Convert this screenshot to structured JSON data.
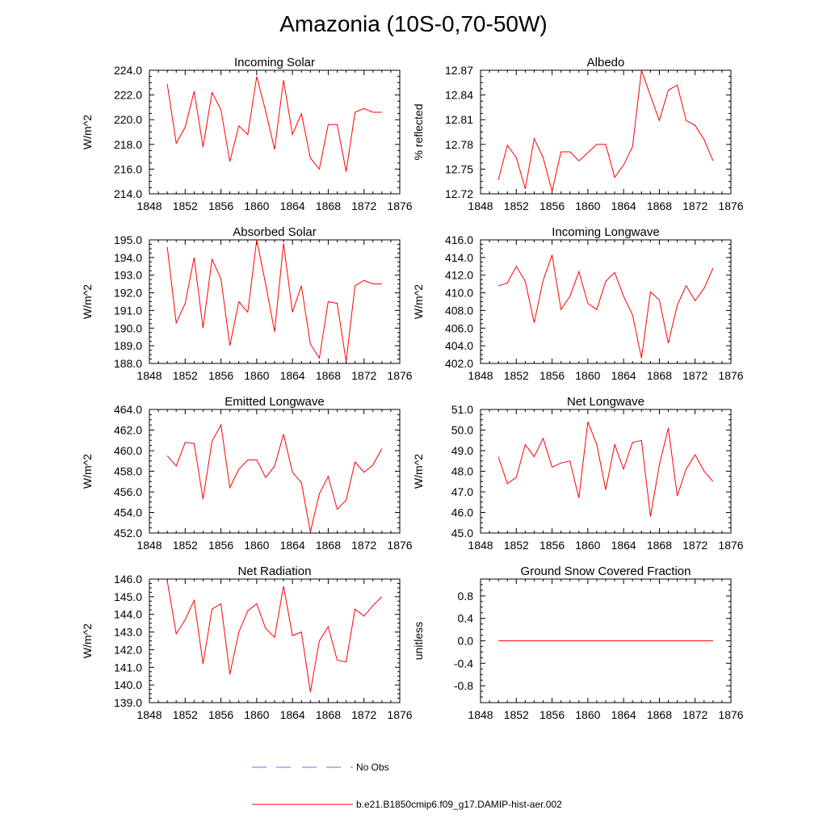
{
  "figure": {
    "title": "Amazonia (10S-0,70-50W)",
    "legend": [
      {
        "label": "No Obs",
        "color": "#6b6bd6",
        "dash": true
      },
      {
        "label": "b.e21.B1850cmip6.f09_g17.DAMIP-hist-aer.002",
        "color": "#ff0000",
        "dash": false
      }
    ]
  },
  "chart_data": [
    {
      "type": "line",
      "title": "Incoming Solar",
      "ylabel": "W/m^2",
      "xlim": [
        1848,
        1876
      ],
      "xticks": [
        1848,
        1852,
        1856,
        1860,
        1864,
        1868,
        1872,
        1876
      ],
      "ylim": [
        214,
        224
      ],
      "yticks": [
        214,
        216,
        218,
        220,
        222,
        224
      ],
      "yticklabels": [
        "214.0",
        "216.0",
        "218.0",
        "220.0",
        "222.0",
        "224.0"
      ],
      "x": [
        1850,
        1851,
        1852,
        1853,
        1854,
        1855,
        1856,
        1857,
        1858,
        1859,
        1860,
        1861,
        1862,
        1863,
        1864,
        1865,
        1866,
        1867,
        1868,
        1869,
        1870,
        1871,
        1872,
        1873,
        1874
      ],
      "series": [
        {
          "values": [
            222.9,
            218.1,
            219.4,
            222.3,
            217.8,
            222.2,
            220.8,
            216.6,
            219.5,
            218.8,
            223.5,
            220.7,
            217.6,
            223.2,
            218.8,
            220.5,
            216.9,
            216.0,
            219.6,
            219.6,
            215.8,
            220.6,
            220.9,
            220.6,
            220.6
          ],
          "color": "#ff0000"
        }
      ]
    },
    {
      "type": "line",
      "title": "Albedo",
      "ylabel": "% reflected",
      "xlim": [
        1848,
        1876
      ],
      "xticks": [
        1848,
        1852,
        1856,
        1860,
        1864,
        1868,
        1872,
        1876
      ],
      "ylim": [
        12.72,
        12.87
      ],
      "yticks": [
        12.72,
        12.75,
        12.78,
        12.81,
        12.84,
        12.87
      ],
      "yticklabels": [
        "12.72",
        "12.75",
        "12.78",
        "12.81",
        "12.84",
        "12.87"
      ],
      "x": [
        1850,
        1851,
        1852,
        1853,
        1854,
        1855,
        1856,
        1857,
        1858,
        1859,
        1860,
        1861,
        1862,
        1863,
        1864,
        1865,
        1866,
        1867,
        1868,
        1869,
        1870,
        1871,
        1872,
        1873,
        1874
      ],
      "series": [
        {
          "values": [
            12.737,
            12.779,
            12.764,
            12.726,
            12.787,
            12.764,
            12.723,
            12.771,
            12.771,
            12.76,
            12.77,
            12.78,
            12.78,
            12.74,
            12.755,
            12.777,
            12.87,
            12.839,
            12.809,
            12.846,
            12.852,
            12.809,
            12.803,
            12.786,
            12.76
          ],
          "color": "#ff0000"
        }
      ]
    },
    {
      "type": "line",
      "title": "Absorbed Solar",
      "ylabel": "W/m^2",
      "xlim": [
        1848,
        1876
      ],
      "xticks": [
        1848,
        1852,
        1856,
        1860,
        1864,
        1868,
        1872,
        1876
      ],
      "ylim": [
        188,
        195
      ],
      "yticks": [
        188,
        189,
        190,
        191,
        192,
        193,
        194,
        195
      ],
      "yticklabels": [
        "188.0",
        "189.0",
        "190.0",
        "191.0",
        "192.0",
        "193.0",
        "194.0",
        "195.0"
      ],
      "x": [
        1850,
        1851,
        1852,
        1853,
        1854,
        1855,
        1856,
        1857,
        1858,
        1859,
        1860,
        1861,
        1862,
        1863,
        1864,
        1865,
        1866,
        1867,
        1868,
        1869,
        1870,
        1871,
        1872,
        1873,
        1874
      ],
      "series": [
        {
          "values": [
            194.6,
            190.3,
            191.4,
            194.0,
            190.0,
            193.9,
            192.8,
            189.0,
            191.5,
            190.9,
            195.0,
            192.5,
            189.8,
            194.8,
            190.9,
            192.4,
            189.1,
            188.3,
            191.5,
            191.4,
            188.1,
            192.4,
            192.7,
            192.5,
            192.5
          ],
          "color": "#ff0000"
        }
      ]
    },
    {
      "type": "line",
      "title": "Incoming Longwave",
      "ylabel": "W/m^2",
      "xlim": [
        1848,
        1876
      ],
      "xticks": [
        1848,
        1852,
        1856,
        1860,
        1864,
        1868,
        1872,
        1876
      ],
      "ylim": [
        402,
        416
      ],
      "yticks": [
        402,
        404,
        406,
        408,
        410,
        412,
        414,
        416
      ],
      "yticklabels": [
        "402.0",
        "404.0",
        "406.0",
        "408.0",
        "410.0",
        "412.0",
        "414.0",
        "416.0"
      ],
      "x": [
        1850,
        1851,
        1852,
        1853,
        1854,
        1855,
        1856,
        1857,
        1858,
        1859,
        1860,
        1861,
        1862,
        1863,
        1864,
        1865,
        1866,
        1867,
        1868,
        1869,
        1870,
        1871,
        1872,
        1873,
        1874
      ],
      "series": [
        {
          "values": [
            410.8,
            411.1,
            413.0,
            411.3,
            406.6,
            411.4,
            414.3,
            408.1,
            409.6,
            412.4,
            408.8,
            408.1,
            411.3,
            412.3,
            409.6,
            407.5,
            402.6,
            410.1,
            409.2,
            404.3,
            408.6,
            410.8,
            409.1,
            410.5,
            412.8
          ],
          "color": "#ff0000"
        }
      ]
    },
    {
      "type": "line",
      "title": "Emitted Longwave",
      "ylabel": "W/m^2",
      "xlim": [
        1848,
        1876
      ],
      "xticks": [
        1848,
        1852,
        1856,
        1860,
        1864,
        1868,
        1872,
        1876
      ],
      "ylim": [
        452,
        464
      ],
      "yticks": [
        452,
        454,
        456,
        458,
        460,
        462,
        464
      ],
      "yticklabels": [
        "452.0",
        "454.0",
        "456.0",
        "458.0",
        "460.0",
        "462.0",
        "464.0"
      ],
      "x": [
        1850,
        1851,
        1852,
        1853,
        1854,
        1855,
        1856,
        1857,
        1858,
        1859,
        1860,
        1861,
        1862,
        1863,
        1864,
        1865,
        1866,
        1867,
        1868,
        1869,
        1870,
        1871,
        1872,
        1873,
        1874
      ],
      "series": [
        {
          "values": [
            459.5,
            458.5,
            460.8,
            460.7,
            455.3,
            460.9,
            462.5,
            456.4,
            458.2,
            459.1,
            459.1,
            457.4,
            458.5,
            461.6,
            457.9,
            456.9,
            452.1,
            455.8,
            457.5,
            454.3,
            455.2,
            458.9,
            457.9,
            458.6,
            460.2
          ],
          "color": "#ff0000"
        }
      ]
    },
    {
      "type": "line",
      "title": "Net Longwave",
      "ylabel": "W/m^2",
      "xlim": [
        1848,
        1876
      ],
      "xticks": [
        1848,
        1852,
        1856,
        1860,
        1864,
        1868,
        1872,
        1876
      ],
      "ylim": [
        45,
        51
      ],
      "yticks": [
        45,
        46,
        47,
        48,
        49,
        50,
        51
      ],
      "yticklabels": [
        "45.0",
        "46.0",
        "47.0",
        "48.0",
        "49.0",
        "50.0",
        "51.0"
      ],
      "x": [
        1850,
        1851,
        1852,
        1853,
        1854,
        1855,
        1856,
        1857,
        1858,
        1859,
        1860,
        1861,
        1862,
        1863,
        1864,
        1865,
        1866,
        1867,
        1868,
        1869,
        1870,
        1871,
        1872,
        1873,
        1874
      ],
      "series": [
        {
          "values": [
            48.7,
            47.4,
            47.7,
            49.3,
            48.7,
            49.6,
            48.2,
            48.4,
            48.5,
            46.7,
            50.4,
            49.3,
            47.1,
            49.3,
            48.1,
            49.4,
            49.5,
            45.8,
            48.3,
            50.1,
            46.8,
            48.1,
            48.8,
            48.0,
            47.5
          ],
          "color": "#ff0000"
        }
      ]
    },
    {
      "type": "line",
      "title": "Net Radiation",
      "ylabel": "W/m^2",
      "xlim": [
        1848,
        1876
      ],
      "xticks": [
        1848,
        1852,
        1856,
        1860,
        1864,
        1868,
        1872,
        1876
      ],
      "ylim": [
        139,
        146
      ],
      "yticks": [
        139,
        140,
        141,
        142,
        143,
        144,
        145,
        146
      ],
      "yticklabels": [
        "139.0",
        "140.0",
        "141.0",
        "142.0",
        "143.0",
        "144.0",
        "145.0",
        "146.0"
      ],
      "x": [
        1850,
        1851,
        1852,
        1853,
        1854,
        1855,
        1856,
        1857,
        1858,
        1859,
        1860,
        1861,
        1862,
        1863,
        1864,
        1865,
        1866,
        1867,
        1868,
        1869,
        1870,
        1871,
        1872,
        1873,
        1874
      ],
      "series": [
        {
          "values": [
            145.9,
            142.9,
            143.7,
            144.8,
            141.2,
            144.3,
            144.6,
            140.6,
            143.0,
            144.2,
            144.6,
            143.2,
            142.7,
            145.6,
            142.8,
            143.0,
            139.6,
            142.5,
            143.3,
            141.4,
            141.3,
            144.3,
            143.9,
            144.5,
            145.0
          ],
          "color": "#ff0000"
        }
      ]
    },
    {
      "type": "line",
      "title": "Ground Snow Covered Fraction",
      "ylabel": "unitless",
      "xlim": [
        1848,
        1876
      ],
      "xticks": [
        1848,
        1852,
        1856,
        1860,
        1864,
        1868,
        1872,
        1876
      ],
      "ylim": [
        -1.1,
        1.1
      ],
      "yticks": [
        -0.8,
        -0.4,
        0.0,
        0.4,
        0.8
      ],
      "yticklabels": [
        "-0.8",
        "-0.4",
        "0.0",
        "0.4",
        "0.8"
      ],
      "x": [
        1850,
        1851,
        1852,
        1853,
        1854,
        1855,
        1856,
        1857,
        1858,
        1859,
        1860,
        1861,
        1862,
        1863,
        1864,
        1865,
        1866,
        1867,
        1868,
        1869,
        1870,
        1871,
        1872,
        1873,
        1874
      ],
      "series": [
        {
          "values": [
            0,
            0,
            0,
            0,
            0,
            0,
            0,
            0,
            0,
            0,
            0,
            0,
            0,
            0,
            0,
            0,
            0,
            0,
            0,
            0,
            0,
            0,
            0,
            0,
            0
          ],
          "color": "#ff0000"
        }
      ]
    }
  ]
}
